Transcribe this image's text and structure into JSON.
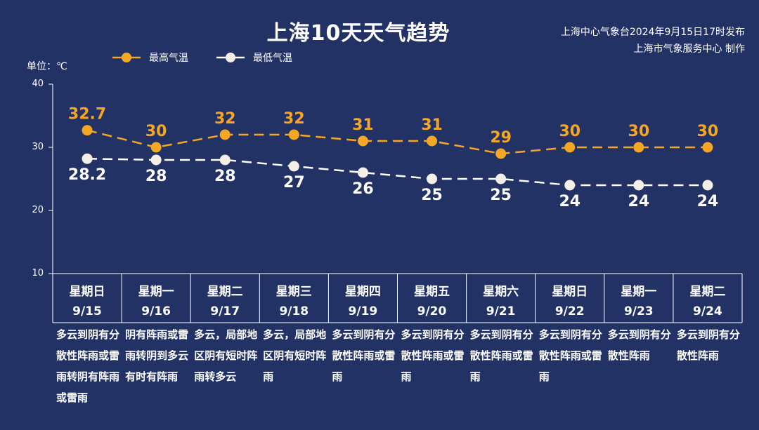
{
  "title": "上海10天天气趋势",
  "source": {
    "line1": "上海中心气象台2024年9月15日17时发布",
    "line2": "上海市气象服务中心 制作"
  },
  "unit_label": "单位：℃",
  "legend": {
    "high": "最高气温",
    "low": "最低气温"
  },
  "colors": {
    "background": "#233265",
    "high": "#F5A623",
    "low": "#FFFFFF",
    "high_label": "#F5A623",
    "low_label": "#FFFFFF"
  },
  "chart_data": {
    "type": "line",
    "title": "上海10天天气趋势",
    "ylabel": "单位：℃",
    "ylim": [
      10,
      40
    ],
    "yticks": [
      "10",
      "20",
      "30",
      "40"
    ],
    "categories": [
      "9/15",
      "9/16",
      "9/17",
      "9/18",
      "9/19",
      "9/20",
      "9/21",
      "9/22",
      "9/23",
      "9/24"
    ],
    "weekdays": [
      "星期日",
      "星期一",
      "星期二",
      "星期三",
      "星期四",
      "星期五",
      "星期六",
      "星期日",
      "星期一",
      "星期二"
    ],
    "series": [
      {
        "name": "最高气温",
        "values": [
          32.7,
          30,
          32,
          32,
          31,
          31,
          29,
          30,
          30,
          30
        ],
        "labels": [
          "32.7",
          "30",
          "32",
          "32",
          "31",
          "31",
          "29",
          "30",
          "30",
          "30"
        ]
      },
      {
        "name": "最低气温",
        "values": [
          28.2,
          28,
          28,
          27,
          26,
          25,
          25,
          24,
          24,
          24
        ],
        "labels": [
          "28.2",
          "28",
          "28",
          "27",
          "26",
          "25",
          "25",
          "24",
          "24",
          "24"
        ]
      }
    ],
    "weather": [
      "多云到阴有分散性阵雨或雷雨转阴有阵雨或雷雨",
      "阴有阵雨或雷雨转阴到多云有时有阵雨",
      "多云，局部地区阴有短时阵雨转多云",
      "多云，局部地区阴有短时阵雨",
      "多云到阴有分散性阵雨或雷雨",
      "多云到阴有分散性阵雨或雷雨",
      "多云到阴有分散性阵雨或雷雨",
      "多云到阴有分散性阵雨或雷雨",
      "多云到阴有分散性阵雨",
      "多云到阴有分散性阵雨"
    ],
    "legend_position": "top-left",
    "grid": false
  }
}
